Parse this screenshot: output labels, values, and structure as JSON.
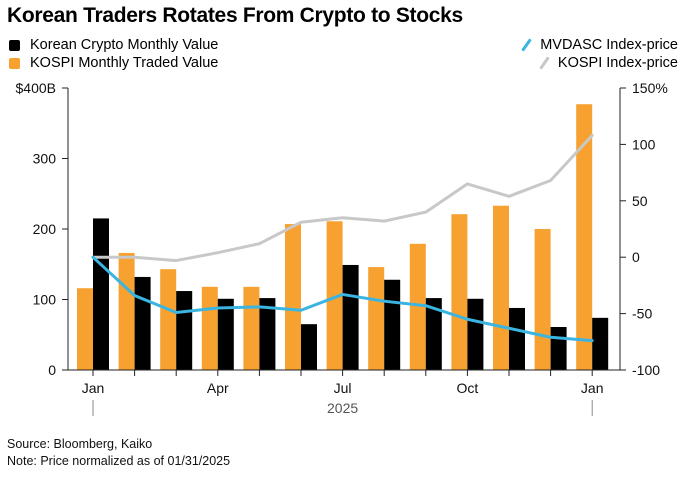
{
  "chart_data": {
    "type": "bar",
    "title": "Korean Traders Rotates From Crypto to Stocks",
    "categories": [
      "Jan 2025",
      "Feb 2025",
      "Mar 2025",
      "Apr 2025",
      "May 2025",
      "Jun 2025",
      "Jul 2025",
      "Aug 2025",
      "Sep 2025",
      "Oct 2025",
      "Nov 2025",
      "Dec 2025",
      "Jan 2026"
    ],
    "tick_labels": [
      "Jan",
      "Apr",
      "Jul",
      "Oct",
      "Jan"
    ],
    "tick_label_indices": [
      0,
      3,
      6,
      9,
      12
    ],
    "year_label": "2025",
    "series": [
      {
        "name": "KOSPI Monthly Traded Value",
        "type": "bar",
        "axis": "left",
        "color": "#f7a130",
        "values": [
          116,
          166,
          143,
          118,
          118,
          207,
          211,
          146,
          179,
          221,
          233,
          200,
          377
        ]
      },
      {
        "name": "Korean Crypto Monthly Value",
        "type": "bar",
        "axis": "left",
        "color": "#000000",
        "values": [
          215,
          132,
          112,
          101,
          102,
          65,
          149,
          128,
          102,
          101,
          88,
          61,
          74
        ]
      },
      {
        "name": "MVDASC Index-price",
        "type": "line",
        "axis": "right",
        "color": "#3ab4e0",
        "values": [
          0,
          -34,
          -49,
          -45,
          -44,
          -47,
          -33,
          -39,
          -43,
          -55,
          -63,
          -71,
          -74
        ]
      },
      {
        "name": "KOSPI Index-price",
        "type": "line",
        "axis": "right",
        "color": "#c8c8c8",
        "values": [
          0,
          0,
          -3,
          4,
          12,
          31,
          35,
          32,
          40,
          65,
          54,
          68,
          108
        ]
      }
    ],
    "left_axis": {
      "ylim": [
        0,
        400
      ],
      "ticks": [
        0,
        100,
        200,
        300,
        400
      ],
      "tick_labels": [
        "0",
        "100",
        "200",
        "300",
        "$400B"
      ]
    },
    "right_axis": {
      "ylim": [
        -100,
        150
      ],
      "ticks": [
        -100,
        -50,
        0,
        50,
        100,
        150
      ],
      "tick_labels": [
        "-100",
        "-50",
        "0",
        "50",
        "100",
        "150%"
      ]
    },
    "grid": false,
    "legend": {
      "left": [
        {
          "label": "Korean Crypto Monthly Value",
          "color": "#000000",
          "symbol": "square"
        },
        {
          "label": "KOSPI Monthly Traded Value",
          "color": "#f7a130",
          "symbol": "square"
        }
      ],
      "right": [
        {
          "label": "MVDASC Index-price",
          "color": "#3ab4e0",
          "symbol": "line"
        },
        {
          "label": "KOSPI Index-price",
          "color": "#c8c8c8",
          "symbol": "line"
        }
      ],
      "placement": "top"
    }
  },
  "footer": {
    "source": "Source: Bloomberg, Kaiko",
    "note": "Note: Price normalized as of 01/31/2025"
  }
}
